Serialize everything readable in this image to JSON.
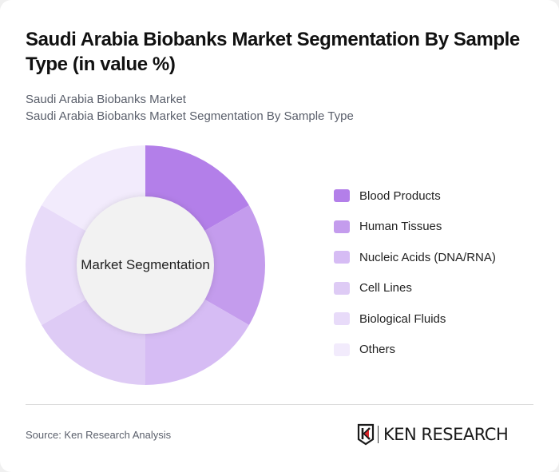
{
  "header": {
    "title": "Saudi Arabia Biobanks Market Segmentation By Sample Type (in value %)",
    "subtitle_line1": "Saudi Arabia Biobanks Market",
    "subtitle_line2": "Saudi Arabia Biobanks Market Segmentation By Sample Type"
  },
  "donut": {
    "center_label": "Market Segmentation"
  },
  "legend": [
    {
      "label": "Blood Products",
      "color": "#b37fe9"
    },
    {
      "label": "Human Tissues",
      "color": "#c49ced"
    },
    {
      "label": "Nucleic Acids (DNA/RNA)",
      "color": "#d6bcf4"
    },
    {
      "label": "Cell Lines",
      "color": "#decbf5"
    },
    {
      "label": "Biological Fluids",
      "color": "#e8dbf9"
    },
    {
      "label": "Others",
      "color": "#f2ebfc"
    }
  ],
  "footer": {
    "source": "Source: Ken Research Analysis",
    "logo_text": "KEN RESEARCH"
  },
  "chart_data": {
    "type": "pie",
    "title": "Saudi Arabia Biobanks Market Segmentation By Sample Type (in value %)",
    "subtitle": "Saudi Arabia Biobanks Market Segmentation By Sample Type",
    "center_label": "Market Segmentation",
    "donut": true,
    "categories": [
      "Blood Products",
      "Human Tissues",
      "Nucleic Acids (DNA/RNA)",
      "Cell Lines",
      "Biological Fluids",
      "Others"
    ],
    "values": [
      16.67,
      16.67,
      16.67,
      16.67,
      16.67,
      16.67
    ],
    "colors": [
      "#b37fe9",
      "#c49ced",
      "#d6bcf4",
      "#decbf5",
      "#e8dbf9",
      "#f2ebfc"
    ],
    "legend_position": "right",
    "source": "Source: Ken Research Analysis"
  }
}
